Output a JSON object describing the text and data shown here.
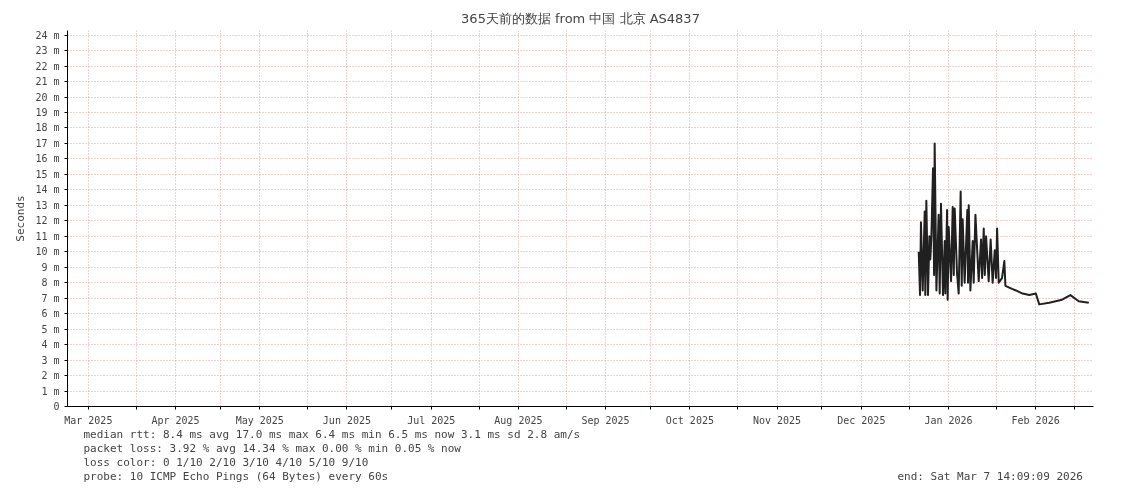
{
  "chart_data": {
    "type": "line",
    "title": "365天前的数据 from 中国 北京 AS4837",
    "ylabel": "Seconds",
    "xlim": [
      "2025-03-07T14:09",
      "2026-03-07T14:09"
    ],
    "ylim": [
      0,
      24.3
    ],
    "yticks": [
      0,
      {
        "value": 1,
        "label": "1 m"
      },
      {
        "value": 2,
        "label": "2 m"
      },
      {
        "value": 3,
        "label": "3 m"
      },
      {
        "value": 4,
        "label": "4 m"
      },
      {
        "value": 5,
        "label": "5 m"
      },
      {
        "value": 6,
        "label": "6 m"
      },
      {
        "value": 7,
        "label": "7 m"
      },
      {
        "value": 8,
        "label": "8 m"
      },
      {
        "value": 9,
        "label": "9 m"
      },
      {
        "value": 10,
        "label": "10 m"
      },
      {
        "value": 11,
        "label": "11 m"
      },
      {
        "value": 12,
        "label": "12 m"
      },
      {
        "value": 13,
        "label": "13 m"
      },
      {
        "value": 14,
        "label": "14 m"
      },
      {
        "value": 15,
        "label": "15 m"
      },
      {
        "value": 16,
        "label": "16 m"
      },
      {
        "value": 17,
        "label": "17 m"
      },
      {
        "value": 18,
        "label": "18 m"
      },
      {
        "value": 19,
        "label": "19 m"
      },
      {
        "value": 20,
        "label": "20 m"
      },
      {
        "value": 21,
        "label": "21 m"
      },
      {
        "value": 22,
        "label": "22 m"
      },
      {
        "value": 23,
        "label": "23 m"
      },
      {
        "value": 24,
        "label": "24 m"
      }
    ],
    "xticks": [
      {
        "value": "2025-03-15",
        "label": "Mar 2025"
      },
      {
        "value": "2025-04-15",
        "label": "Apr 2025"
      },
      {
        "value": "2025-05-15",
        "label": "May 2025"
      },
      {
        "value": "2025-06-15",
        "label": "Jun 2025"
      },
      {
        "value": "2025-07-15",
        "label": "Jul 2025"
      },
      {
        "value": "2025-08-15",
        "label": "Aug 2025"
      },
      {
        "value": "2025-09-15",
        "label": "Sep 2025"
      },
      {
        "value": "2025-10-15",
        "label": "Oct 2025"
      },
      {
        "value": "2025-11-15",
        "label": "Nov 2025"
      },
      {
        "value": "2025-12-15",
        "label": "Dec 2025"
      },
      {
        "value": "2026-01-15",
        "label": "Jan 2026"
      },
      {
        "value": "2026-02-15",
        "label": "Feb 2026"
      },
      {
        "value": "2025-04-01",
        "label": null
      },
      {
        "value": "2025-05-01",
        "label": null
      },
      {
        "value": "2025-06-01",
        "label": null
      },
      {
        "value": "2025-07-01",
        "label": null
      },
      {
        "value": "2025-08-01",
        "label": null
      },
      {
        "value": "2025-09-01",
        "label": null
      },
      {
        "value": "2025-10-01",
        "label": null
      },
      {
        "value": "2025-11-01",
        "label": null
      },
      {
        "value": "2025-12-01",
        "label": null
      },
      {
        "value": "2026-01-01",
        "label": null
      },
      {
        "value": "2026-02-01",
        "label": null
      },
      {
        "value": "2026-03-01",
        "label": null
      }
    ],
    "grid": true,
    "marker": "none",
    "line_style": "solid",
    "series": [
      {
        "color": "#202020",
        "x": [
          "2026-01-04T10:00",
          "2026-01-04T21:00",
          "2026-01-05T05:00",
          "2026-01-05T20:00",
          "2026-01-06T13:00",
          "2026-01-06T18:00",
          "2026-01-07T03:00",
          "2026-01-07T17:00",
          "2026-01-08T05:00",
          "2026-01-08T13:00",
          "2026-01-08T22:00",
          "2026-01-09T12:00",
          "2026-01-09T21:00",
          "2026-01-10T02:00",
          "2026-01-10T17:00",
          "2026-01-11T12:00",
          "2026-01-11T21:00",
          "2026-01-12T08:00",
          "2026-01-13T01:00",
          "2026-01-13T16:00",
          "2026-01-13T21:00",
          "2026-01-14T12:00",
          "2026-01-14T17:00",
          "2026-01-15T02:00",
          "2026-01-15T22:00",
          "2026-01-16T12:00",
          "2026-01-16T21:00",
          "2026-01-17T05:00",
          "2026-01-18T01:00",
          "2026-01-18T15:00",
          "2026-01-19T08:00",
          "2026-01-19T17:00",
          "2026-01-20T01:00",
          "2026-01-20T18:00",
          "2026-01-21T17:00",
          "2026-01-21T23:00",
          "2026-01-22T05:00",
          "2026-01-22T19:00",
          "2026-01-23T15:00",
          "2026-01-23T23:00",
          "2026-01-24T14:00",
          "2026-01-25T18:00",
          "2026-01-26T14:00",
          "2026-01-26T23:00",
          "2026-01-27T13:00",
          "2026-01-27T22:00",
          "2026-01-28T09:00",
          "2026-01-29T07:00",
          "2026-01-30T00:00",
          "2026-01-30T17:00",
          "2026-01-31T11:00",
          "2026-01-31T22:00",
          "2026-02-01T07:00",
          "2026-02-01T21:00",
          "2026-02-03T01:00",
          "2026-02-03T21:00",
          "2026-02-04T06:00",
          "2026-02-06T15:00",
          "2026-02-08T00:00",
          "2026-02-10T09:00",
          "2026-02-12T18:00",
          "2026-02-15T02:00",
          "2026-02-16T07:00",
          "2026-02-19T20:00",
          "2026-02-24T10:00",
          "2026-02-27T09:00",
          "2026-03-02T08:00",
          "2026-03-05T22:00"
        ],
        "values": [
          10.0,
          7.2,
          11.9,
          7.5,
          12.6,
          7.2,
          13.3,
          7.2,
          11.0,
          9.5,
          11.0,
          15.4,
          8.5,
          17.0,
          7.5,
          12.4,
          7.3,
          13.1,
          7.2,
          10.7,
          7.3,
          12.7,
          6.9,
          11.6,
          8.1,
          12.9,
          8.5,
          12.8,
          8.6,
          7.3,
          13.9,
          7.8,
          12.1,
          8.0,
          12.7,
          8.0,
          13.0,
          7.5,
          10.7,
          8.0,
          12.4,
          8.1,
          10.8,
          8.3,
          11.5,
          8.5,
          11.0,
          8.1,
          10.8,
          8.0,
          10.1,
          8.3,
          11.5,
          8.0,
          8.3,
          9.4,
          7.8,
          7.6,
          7.5,
          7.3,
          7.2,
          7.3,
          6.6,
          6.7,
          6.9,
          7.2,
          6.8,
          6.7
        ]
      }
    ],
    "annotations": [
      "median rtt:  8.4 ms avg  17.0 ms max   6.4 ms min   6.5 ms now   3.1 ms sd   2.8   am/s",
      "packet loss: 3.92 % avg  14.34 % max   0.00 % min   0.05 % now",
      "loss color:   0   1/10   2/10   3/10   4/10   5/10   9/10",
      "probe:       10 ICMP Echo Pings (64 Bytes) every 60s",
      "end: Sat Mar  7 14:09:09 2026"
    ]
  }
}
